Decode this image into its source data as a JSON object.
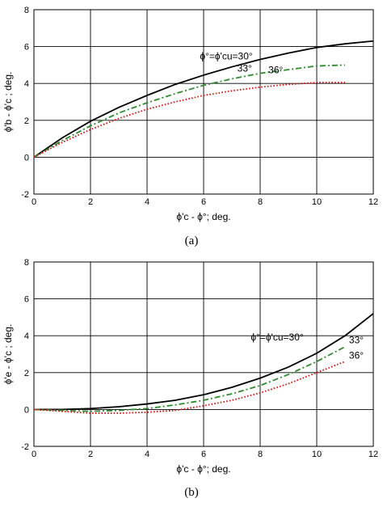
{
  "chart_data": [
    {
      "type": "line",
      "panel_label": "(a)",
      "ylabel": "ϕ'b - ϕ'c ; deg.",
      "xlabel": "ϕ'c - ϕ°; deg.",
      "xlim": [
        0,
        12
      ],
      "ylim": [
        -2,
        8
      ],
      "xticks": [
        "0",
        "2",
        "4",
        "6",
        "8",
        "10",
        "12"
      ],
      "yticks": [
        "-2",
        "0",
        "2",
        "4",
        "6",
        "8"
      ],
      "grid": true,
      "series": [
        {
          "name": "ϕ°=ϕ'cu=30°",
          "color": "#000000",
          "style": "solid",
          "x": [
            0,
            1,
            2,
            3,
            4,
            5,
            6,
            7,
            8,
            9,
            10,
            11,
            12
          ],
          "y": [
            0,
            1.05,
            1.95,
            2.7,
            3.35,
            3.95,
            4.45,
            4.9,
            5.3,
            5.65,
            5.95,
            6.15,
            6.3
          ]
        },
        {
          "name": "33°",
          "color": "#2e8b2e",
          "style": "dashdot",
          "x": [
            0,
            1,
            2,
            3,
            4,
            5,
            6,
            7,
            8,
            9,
            10,
            11
          ],
          "y": [
            0,
            0.9,
            1.7,
            2.4,
            2.95,
            3.45,
            3.9,
            4.25,
            4.55,
            4.75,
            4.95,
            5.0
          ]
        },
        {
          "name": "36°",
          "color": "#d01010",
          "style": "dotted",
          "x": [
            0,
            1,
            2,
            3,
            4,
            5,
            6,
            7,
            8,
            9,
            10,
            11
          ],
          "y": [
            0,
            0.8,
            1.5,
            2.1,
            2.6,
            3.0,
            3.35,
            3.6,
            3.8,
            3.95,
            4.05,
            4.05
          ]
        }
      ]
    },
    {
      "type": "line",
      "panel_label": "(b)",
      "ylabel": "ϕ'e - ϕ'c ; deg.",
      "xlabel": "ϕ'c - ϕ°; deg.",
      "xlim": [
        0,
        12
      ],
      "ylim": [
        -2,
        8
      ],
      "xticks": [
        "0",
        "2",
        "4",
        "6",
        "8",
        "10",
        "12"
      ],
      "yticks": [
        "-2",
        "0",
        "2",
        "4",
        "6",
        "8"
      ],
      "grid": true,
      "series": [
        {
          "name": "ϕ°=ϕ'cu=30°",
          "color": "#000000",
          "style": "solid",
          "x": [
            0,
            1,
            2,
            3,
            4,
            5,
            6,
            7,
            8,
            9,
            10,
            11,
            12
          ],
          "y": [
            0,
            0,
            0.05,
            0.15,
            0.3,
            0.5,
            0.8,
            1.2,
            1.7,
            2.3,
            3.05,
            4.0,
            5.2
          ]
        },
        {
          "name": "33°",
          "color": "#2e8b2e",
          "style": "dashdot",
          "x": [
            0,
            1,
            2,
            3,
            4,
            5,
            6,
            7,
            8,
            9,
            10,
            11
          ],
          "y": [
            0,
            -0.05,
            -0.1,
            -0.05,
            0.05,
            0.25,
            0.5,
            0.85,
            1.3,
            1.9,
            2.6,
            3.4
          ]
        },
        {
          "name": "36°",
          "color": "#d01010",
          "style": "dotted",
          "x": [
            0,
            1,
            2,
            3,
            4,
            5,
            6,
            7,
            8,
            9,
            10,
            11
          ],
          "y": [
            0,
            -0.1,
            -0.2,
            -0.2,
            -0.15,
            -0.05,
            0.2,
            0.5,
            0.9,
            1.4,
            2.0,
            2.6
          ]
        }
      ]
    }
  ]
}
